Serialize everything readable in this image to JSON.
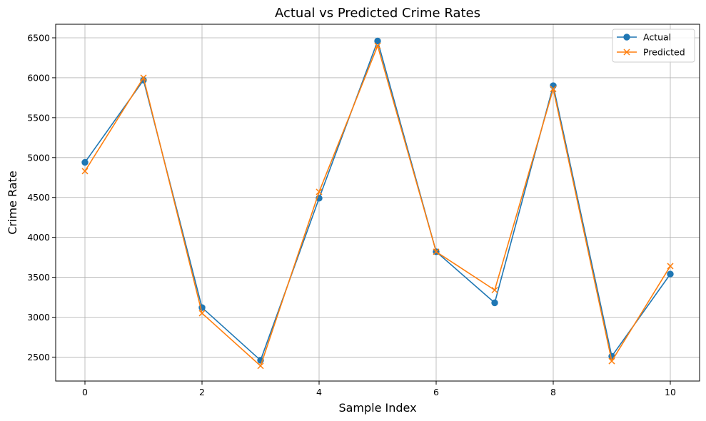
{
  "chart_data": {
    "type": "line",
    "title": "Actual vs Predicted Crime Rates",
    "xlabel": "Sample Index",
    "ylabel": "Crime Rate",
    "x": [
      0,
      1,
      2,
      3,
      4,
      5,
      6,
      7,
      8,
      9,
      10
    ],
    "xlim": [
      -0.5,
      10.5
    ],
    "ylim": [
      2200,
      6670
    ],
    "xticks": [
      0,
      2,
      4,
      6,
      8,
      10
    ],
    "yticks": [
      2500,
      3000,
      3500,
      4000,
      4500,
      5000,
      5500,
      6000,
      6500
    ],
    "grid": true,
    "legend_position": "top-right",
    "series": [
      {
        "name": "Actual",
        "marker": "circle",
        "color": "#1f77b4",
        "values": [
          4940,
          5970,
          3120,
          2460,
          4490,
          6460,
          3820,
          3180,
          5900,
          2510,
          3540
        ]
      },
      {
        "name": "Predicted",
        "marker": "x",
        "color": "#ff7f0e",
        "values": [
          4830,
          6000,
          3050,
          2390,
          4570,
          6400,
          3820,
          3340,
          5860,
          2450,
          3640
        ]
      }
    ]
  }
}
